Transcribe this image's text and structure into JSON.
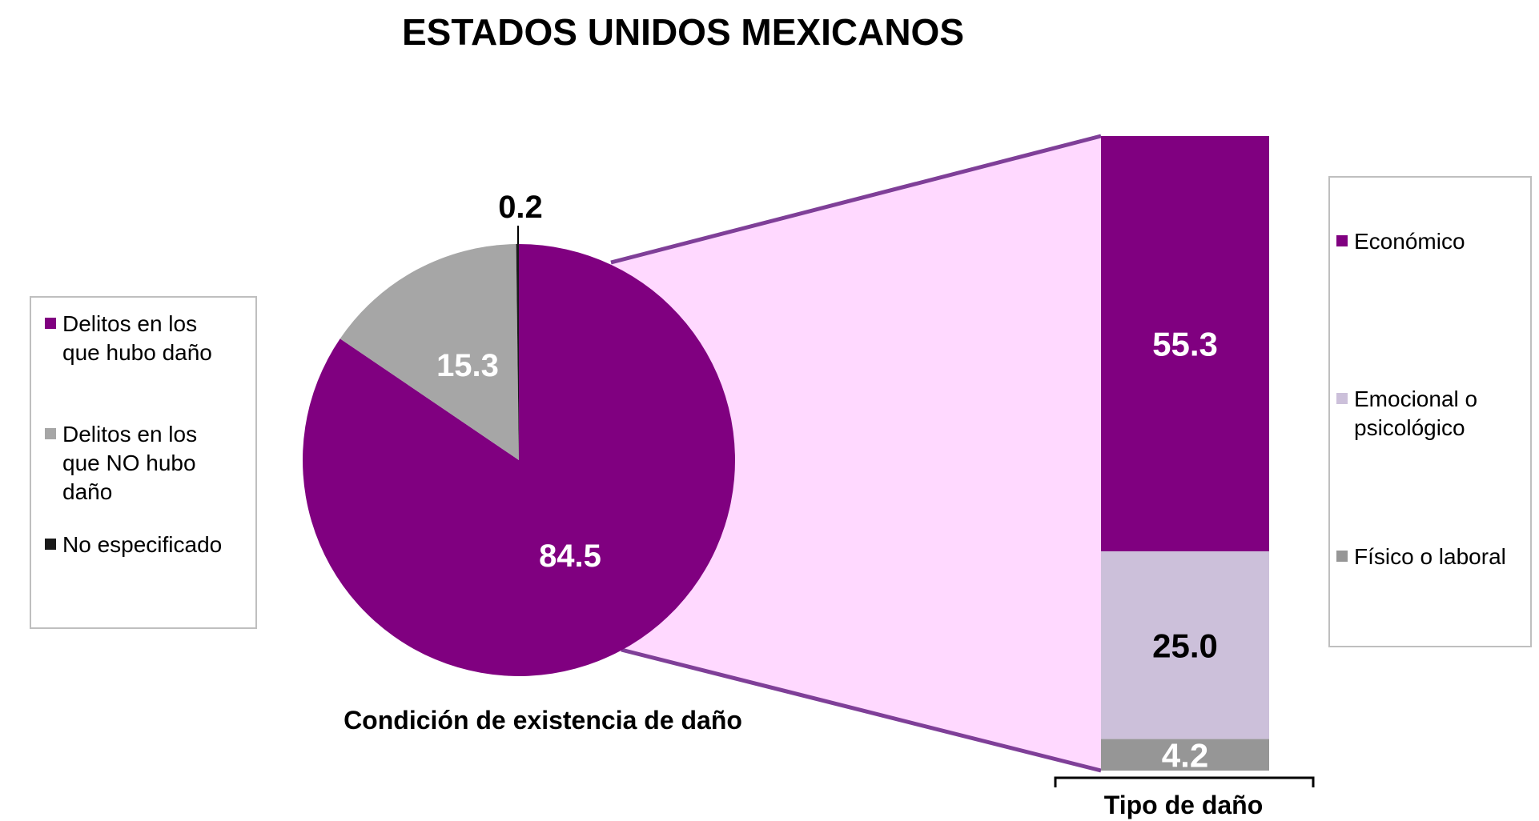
{
  "title": "ESTADOS UNIDOS MEXICANOS",
  "chart_data": [
    {
      "type": "pie",
      "title": "Condición de existencia de daño",
      "categories": [
        "Delitos en los que hubo daño",
        "Delitos en los que NO hubo daño",
        "No especificado"
      ],
      "values": [
        84.5,
        15.3,
        0.2
      ],
      "colors": [
        "#800080",
        "#a6a6a6",
        "#1a1a1a"
      ],
      "legend_position": "left",
      "exploded_slice": "Delitos en los que hubo daño"
    },
    {
      "type": "bar",
      "stacked": true,
      "title": "Tipo de daño",
      "categories": [
        "Económico",
        "Emocional o psicológico",
        "Físico o laboral"
      ],
      "values": [
        55.3,
        25.0,
        4.2
      ],
      "colors": [
        "#800080",
        "#ccc0da",
        "#969696"
      ],
      "label_colors": [
        "#ffffff",
        "#000000",
        "#ffffff"
      ],
      "legend_position": "right"
    }
  ],
  "legend_left": [
    {
      "lines": [
        "Delitos en los",
        "que hubo daño"
      ],
      "color": "#800080"
    },
    {
      "lines": [
        "Delitos en los",
        "que NO hubo",
        "daño"
      ],
      "color": "#a6a6a6"
    },
    {
      "lines": [
        "No especificado"
      ],
      "color": "#1a1a1a"
    }
  ],
  "legend_right": [
    {
      "lines": [
        "Económico"
      ],
      "color": "#800080"
    },
    {
      "lines": [
        "Emocional o",
        "psicológico"
      ],
      "color": "#ccc0da"
    },
    {
      "lines": [
        "Físico o laboral"
      ],
      "color": "#969696"
    }
  ],
  "labels": {
    "pie": [
      "84.5",
      "15.3",
      "0.2"
    ],
    "bar": [
      "55.3",
      "25.0",
      "4.2"
    ]
  },
  "connector_fill": "#ffd9ff",
  "connector_stroke": "#7f3f98"
}
